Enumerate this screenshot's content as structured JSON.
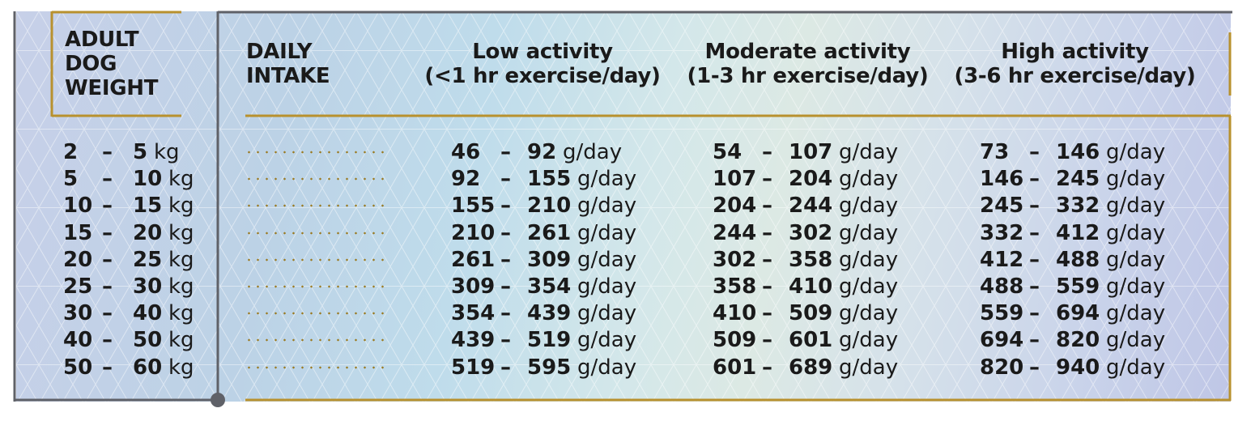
{
  "headers": {
    "weight": [
      "ADULT",
      "DOG",
      "WEIGHT"
    ],
    "intake": [
      "DAILY",
      "INTAKE"
    ],
    "low": [
      "Low activity",
      "(<1 hr exercise/day)"
    ],
    "moderate": [
      "Moderate activity",
      "(1-3 hr exercise/day)"
    ],
    "high": [
      "High activity",
      "(3-6 hr exercise/day)"
    ]
  },
  "dash": "–",
  "weight_unit": "kg",
  "intake_unit": "g/day",
  "rows": [
    {
      "w_min": "2",
      "w_max": "5",
      "low_min": "46",
      "low_max": "92",
      "mod_min": "54",
      "mod_max": "107",
      "high_min": "73",
      "high_max": "146"
    },
    {
      "w_min": "5",
      "w_max": "10",
      "low_min": "92",
      "low_max": "155",
      "mod_min": "107",
      "mod_max": "204",
      "high_min": "146",
      "high_max": "245"
    },
    {
      "w_min": "10",
      "w_max": "15",
      "low_min": "155",
      "low_max": "210",
      "mod_min": "204",
      "mod_max": "244",
      "high_min": "245",
      "high_max": "332"
    },
    {
      "w_min": "15",
      "w_max": "20",
      "low_min": "210",
      "low_max": "261",
      "mod_min": "244",
      "mod_max": "302",
      "high_min": "332",
      "high_max": "412"
    },
    {
      "w_min": "20",
      "w_max": "25",
      "low_min": "261",
      "low_max": "309",
      "mod_min": "302",
      "mod_max": "358",
      "high_min": "412",
      "high_max": "488"
    },
    {
      "w_min": "25",
      "w_max": "30",
      "low_min": "309",
      "low_max": "354",
      "mod_min": "358",
      "mod_max": "410",
      "high_min": "488",
      "high_max": "559"
    },
    {
      "w_min": "30",
      "w_max": "40",
      "low_min": "354",
      "low_max": "439",
      "mod_min": "410",
      "mod_max": "509",
      "high_min": "559",
      "high_max": "694"
    },
    {
      "w_min": "40",
      "w_max": "50",
      "low_min": "439",
      "low_max": "519",
      "mod_min": "509",
      "mod_max": "601",
      "high_min": "694",
      "high_max": "820"
    },
    {
      "w_min": "50",
      "w_max": "60",
      "low_min": "519",
      "low_max": "595",
      "mod_min": "601",
      "mod_max": "689",
      "high_min": "820",
      "high_max": "940"
    }
  ],
  "colors": {
    "gold": "#b8912e",
    "dark_line": "#5f6168",
    "dots": "#9a7a22"
  }
}
